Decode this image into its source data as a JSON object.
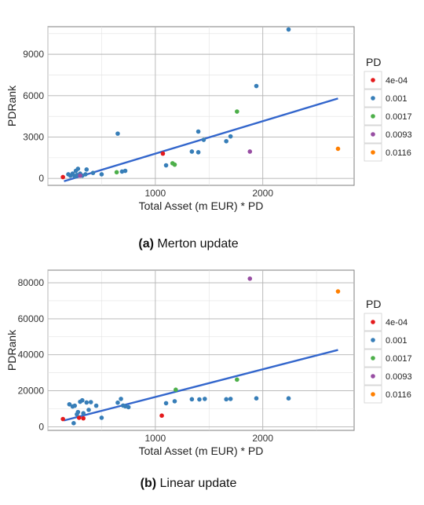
{
  "colors": {
    "4e-04": "#e41a1c",
    "0.001": "#377eb8",
    "0.0017": "#4daf4a",
    "0.0093": "#984ea3",
    "0.0116": "#ff7f00",
    "fit_line": "#3366cc"
  },
  "chart_data": [
    {
      "type": "scatter",
      "xlabel": "Total Asset (m EUR) * PD",
      "ylabel": "PDRank",
      "caption_label": "(a)",
      "caption_text": " Merton update",
      "xlim": [
        0,
        2850
      ],
      "ylim": [
        -500,
        11000
      ],
      "x_ticks": [
        1000,
        2000
      ],
      "y_ticks": [
        0,
        3000,
        6000,
        9000
      ],
      "grid": true,
      "legend": {
        "title": "PD",
        "position": "right",
        "entries": [
          "4e-04",
          "0.001",
          "0.0017",
          "0.0093",
          "0.0116"
        ]
      },
      "trend_line": {
        "x": [
          150,
          2700
        ],
        "y": [
          -200,
          5800
        ]
      },
      "series": [
        {
          "name": "4e-04",
          "points": [
            [
              140,
              100
            ],
            [
              1070,
              1800
            ]
          ]
        },
        {
          "name": "0.001",
          "points": [
            [
              190,
              300
            ],
            [
              210,
              200
            ],
            [
              230,
              350
            ],
            [
              250,
              150
            ],
            [
              260,
              550
            ],
            [
              270,
              250
            ],
            [
              280,
              700
            ],
            [
              300,
              350
            ],
            [
              320,
              200
            ],
            [
              350,
              300
            ],
            [
              360,
              650
            ],
            [
              420,
              400
            ],
            [
              500,
              300
            ],
            [
              650,
              3250
            ],
            [
              690,
              500
            ],
            [
              720,
              550
            ],
            [
              1100,
              950
            ],
            [
              1340,
              1950
            ],
            [
              1400,
              3400
            ],
            [
              1400,
              1900
            ],
            [
              1450,
              2800
            ],
            [
              1660,
              2700
            ],
            [
              1700,
              3050
            ],
            [
              1940,
              6700
            ],
            [
              2240,
              10800
            ]
          ]
        },
        {
          "name": "0.0017",
          "points": [
            [
              640,
              450
            ],
            [
              1160,
              1100
            ],
            [
              1180,
              1000
            ],
            [
              1760,
              4850
            ]
          ]
        },
        {
          "name": "0.0093",
          "points": [
            [
              300,
              200
            ],
            [
              1880,
              1950
            ]
          ]
        },
        {
          "name": "0.0116",
          "points": [
            [
              2700,
              2150
            ]
          ]
        }
      ]
    },
    {
      "type": "scatter",
      "xlabel": "Total Asset (m EUR) * PD",
      "ylabel": "PDRank",
      "caption_label": "(b)",
      "caption_text": " Linear update",
      "xlim": [
        0,
        2850
      ],
      "ylim": [
        -2000,
        87000
      ],
      "x_ticks": [
        1000,
        2000
      ],
      "y_ticks": [
        0,
        20000,
        40000,
        60000,
        80000
      ],
      "grid": true,
      "legend": {
        "title": "PD",
        "position": "right",
        "entries": [
          "4e-04",
          "0.001",
          "0.0017",
          "0.0093",
          "0.0116"
        ]
      },
      "trend_line": {
        "x": [
          150,
          2700
        ],
        "y": [
          3500,
          42700
        ]
      },
      "series": [
        {
          "name": "4e-04",
          "points": [
            [
              140,
              4300
            ],
            [
              290,
              5000
            ],
            [
              330,
              4700
            ],
            [
              1060,
              6200
            ]
          ]
        },
        {
          "name": "0.001",
          "points": [
            [
              200,
              12500
            ],
            [
              230,
              11300
            ],
            [
              240,
              2000
            ],
            [
              250,
              11700
            ],
            [
              270,
              6900
            ],
            [
              280,
              8200
            ],
            [
              300,
              13900
            ],
            [
              320,
              14700
            ],
            [
              330,
              7500
            ],
            [
              360,
              13500
            ],
            [
              380,
              9400
            ],
            [
              400,
              13700
            ],
            [
              450,
              11700
            ],
            [
              500,
              5000
            ],
            [
              650,
              13400
            ],
            [
              680,
              15500
            ],
            [
              700,
              11800
            ],
            [
              720,
              11400
            ],
            [
              750,
              10900
            ],
            [
              1100,
              13100
            ],
            [
              1180,
              14200
            ],
            [
              1340,
              15300
            ],
            [
              1410,
              15200
            ],
            [
              1460,
              15500
            ],
            [
              1660,
              15300
            ],
            [
              1700,
              15500
            ],
            [
              1940,
              15800
            ],
            [
              2240,
              15800
            ]
          ]
        },
        {
          "name": "0.0017",
          "points": [
            [
              1190,
              20600
            ],
            [
              1760,
              26200
            ]
          ]
        },
        {
          "name": "0.0093",
          "points": [
            [
              1880,
              82300
            ]
          ]
        },
        {
          "name": "0.0116",
          "points": [
            [
              2700,
              75200
            ]
          ]
        }
      ]
    }
  ]
}
